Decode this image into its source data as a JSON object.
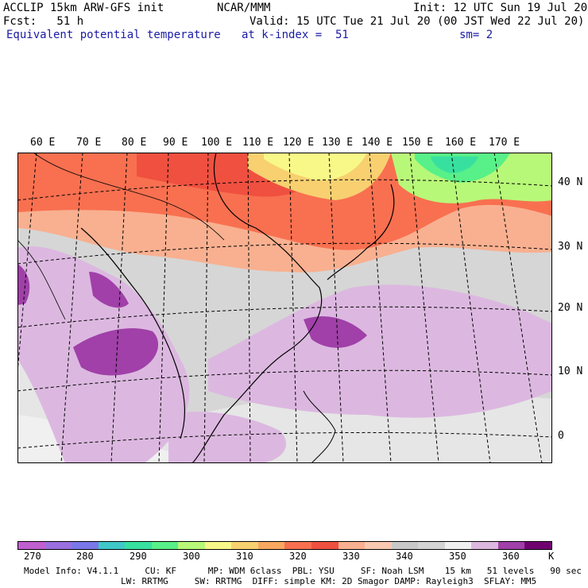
{
  "header": {
    "line1_left": "ACCLIP 15km ARW-GFS init",
    "line1_center": "NCAR/MMM",
    "line1_right": "Init: 12 UTC Sun 19 Jul 20",
    "line2_left": "Fcst:   51 h",
    "line2_right": "Valid: 15 UTC Tue 21 Jul 20 (00 JST Wed 22 Jul 20)",
    "line3_left": "Equivalent potential temperature",
    "line3_center": "at k-index =  51",
    "line3_right": "sm= 2"
  },
  "longitude_labels": [
    "60 E",
    "70 E",
    "80 E",
    "90 E",
    "100 E",
    "110 E",
    "120 E",
    "130 E",
    "140 E",
    "150 E",
    "160 E",
    "170 E"
  ],
  "latitude_labels": [
    "40 N",
    "30 N",
    "20 N",
    "10 N",
    "0"
  ],
  "colorbar": {
    "colors": [
      "#c060d0",
      "#9a70e0",
      "#7a78e8",
      "#40c8c8",
      "#38e0a0",
      "#58f088",
      "#b8f878",
      "#f8f888",
      "#f8d070",
      "#f8a860",
      "#f87050",
      "#f05040",
      "#f8b090",
      "#f8c8b0",
      "#c8c8c8",
      "#d4d4d4",
      "#f0f0f0",
      "#dcb8e0",
      "#a040a8",
      "#700070"
    ],
    "ticks": [
      "270",
      "280",
      "290",
      "300",
      "310",
      "320",
      "330",
      "340",
      "350",
      "360"
    ],
    "unit": "K"
  },
  "footer": {
    "line1": "Model Info: V4.1.1     CU: KF      MP: WDM 6class  PBL: YSU     SF: Noah LSM    15 km   51 levels   90 sec",
    "line2": "LW: RRTMG     SW: RRTMG  DIFF: simple KM: 2D Smagor DAMP: Rayleigh3  SFLAY: MM5"
  }
}
